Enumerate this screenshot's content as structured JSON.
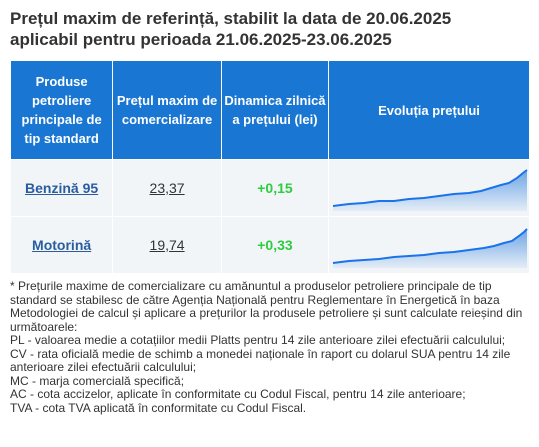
{
  "header": {
    "title": "Prețul maxim de referință, stabilit la data de 20.06.2025",
    "subtitle": "aplicabil pentru perioada 21.06.2025-23.06.2025"
  },
  "table": {
    "columns": [
      "Produse petroliere principale de tip standard",
      "Prețul maxim de comercializare",
      "Dinamica zilnică a prețului (lei)",
      "Evoluția prețului"
    ],
    "rows": [
      [
        "Benzină 95",
        "23,37",
        "+0,15"
      ],
      [
        "Motorină",
        "19,74",
        "+0,33"
      ]
    ]
  },
  "notes": [
    "* Prețurile maxime de comercializare cu amănuntul a produselor petroliere principale de tip standard se stabilesc de către Agenția Națională pentru Reglementare în Energetică în baza Metodologiei de calcul și aplicare a prețurilor la produsele petroliere și sunt calculate reieșind din următoarele:",
    "PL - valoarea medie a cotațiilor medii Platts pentru 14 zile anterioare zilei efectuării calculului;",
    "CV - rata oficială medie de schimb a monedei naționale în raport cu dolarul SUA pentru 14 zile anterioare zilei efectuării calculului;",
    "MC - marja comercială specifică;",
    "AC - cota accizelor, aplicate în conformitate cu Codul Fiscal, pentru 14 zile anterioare;",
    "TVA - cota TVA aplicată în conformitate cu Codul Fiscal."
  ]
}
